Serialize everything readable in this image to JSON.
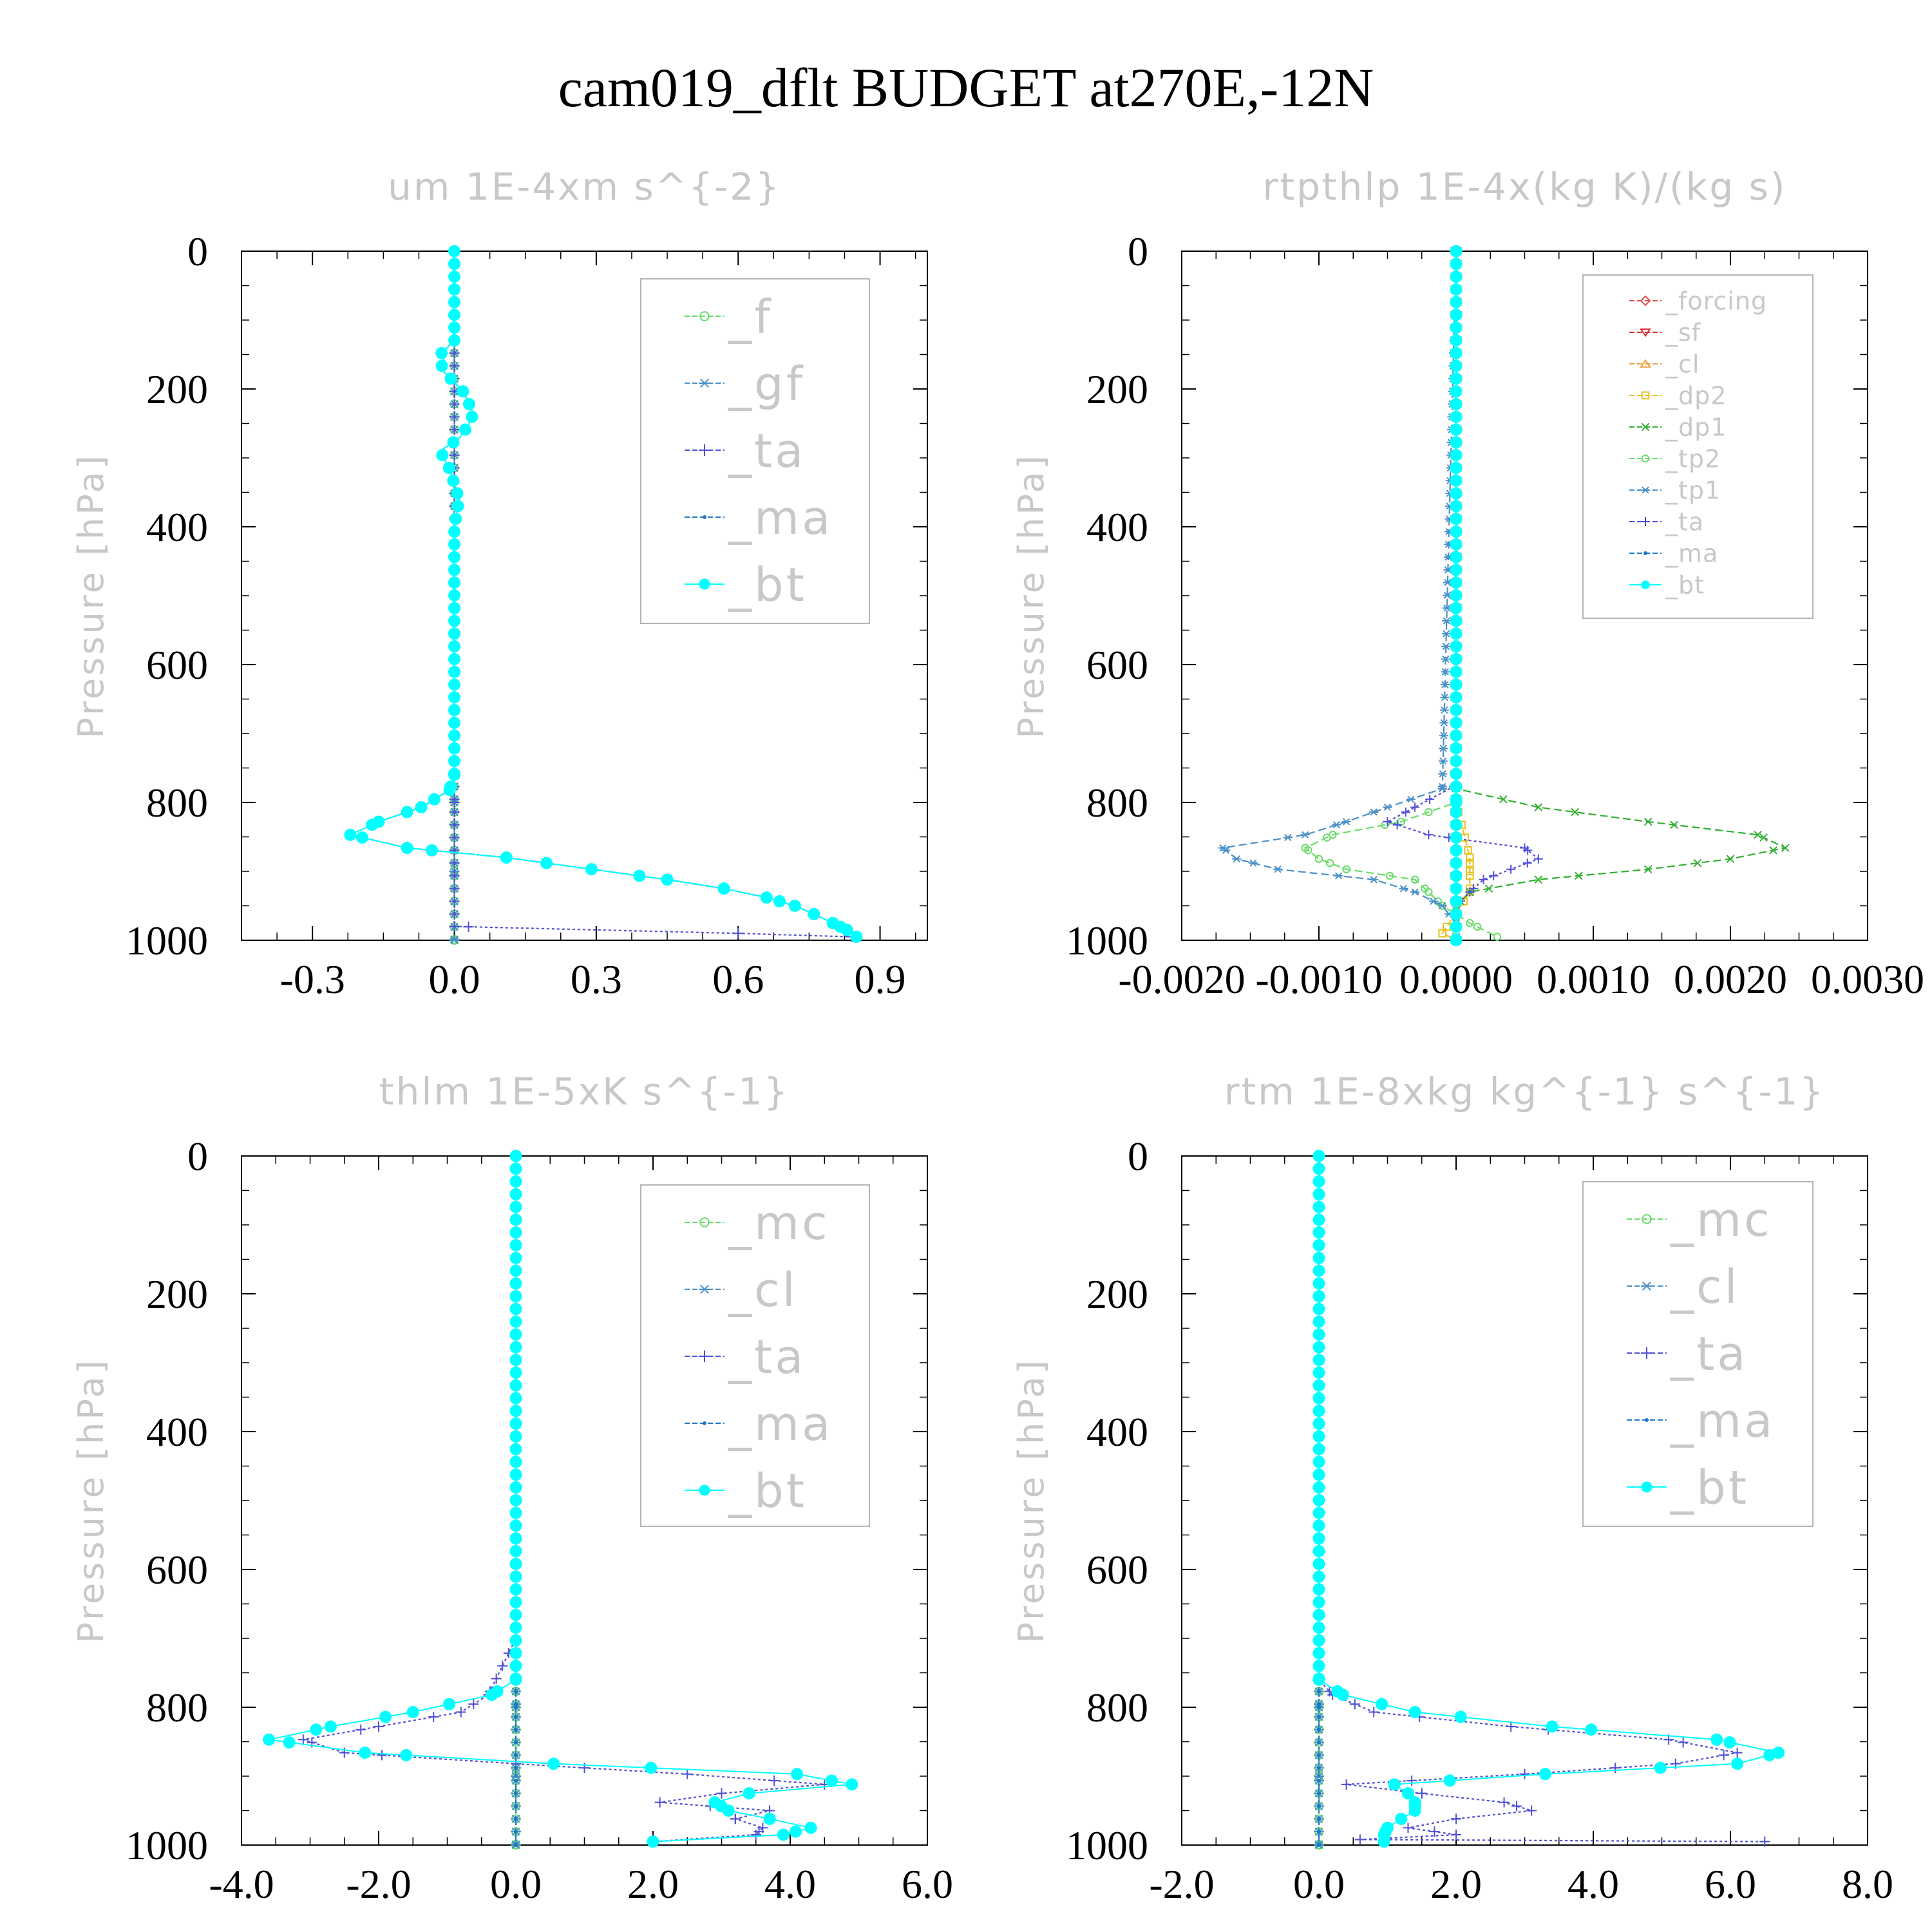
{
  "title": "cam019_dflt  BUDGET at270E,-12N",
  "colors": {
    "axis": "#000000",
    "faint_text": "#c8c8c8",
    "legend_box": "#b4b4b4",
    "bt_marker": "#00ffff"
  },
  "chart_data": [
    {
      "type": "line",
      "title": "um   1E-4xm s^{-2}",
      "ylabel": "Pressure [hPa]",
      "xlim": [
        -0.45,
        1.0
      ],
      "ylim": [
        0,
        1000
      ],
      "y_inverted": true,
      "xticks": [
        -0.3,
        0.0,
        0.3,
        0.6,
        0.9
      ],
      "xtick_labels": [
        "-0.3",
        "0.0",
        "0.3",
        "0.6",
        "0.9"
      ],
      "yticks": [
        0,
        200,
        400,
        600,
        800,
        1000
      ],
      "ytick_labels": [
        "0",
        "200",
        "400",
        "600",
        "800",
        "1000"
      ],
      "legend_position": "top-right",
      "legend_font": 72,
      "series": [
        {
          "name": "_f",
          "color": "#66dd66",
          "marker": "circle",
          "dash": "12,6",
          "y": [
            0,
            100,
            200,
            300,
            400,
            500,
            600,
            700,
            800,
            900,
            1000
          ],
          "x": [
            0,
            0,
            0,
            0,
            0,
            0,
            0,
            0,
            0,
            0,
            0
          ]
        },
        {
          "name": "_gf",
          "color": "#4a90c8",
          "marker": "asterisk",
          "dash": "12,6",
          "y": [
            0,
            100,
            200,
            300,
            400,
            500,
            600,
            700,
            800,
            900,
            1000
          ],
          "x": [
            0,
            0,
            0,
            0,
            0,
            0,
            0,
            0,
            0,
            0,
            0
          ]
        },
        {
          "name": "_ta",
          "color": "#5050d8",
          "marker": "plus",
          "dash": "4,4",
          "y": [
            0,
            800,
            980,
            990,
            995
          ],
          "x": [
            0,
            0,
            0,
            0.6,
            0.84
          ]
        },
        {
          "name": "_ma",
          "color": "#1e78c8",
          "marker": "dot",
          "dash": "14,4,3,4",
          "y": [
            0,
            130,
            150,
            160,
            170,
            190,
            205,
            220,
            236,
            252,
            272,
            290,
            316,
            360,
            400,
            450,
            480,
            520,
            560,
            600,
            630,
            670,
            700,
            730,
            760,
            782,
            807,
            828,
            847,
            866,
            880,
            897,
            912,
            925,
            938,
            950,
            962,
            975,
            985,
            995
          ],
          "x": [
            0,
            0,
            -0.03,
            -0.02,
            -0.03,
            0,
            0.02,
            0.03,
            0.04,
            0.03,
            0.01,
            -0.03,
            -0.01,
            0.01,
            0,
            0,
            0,
            0,
            0,
            0,
            0,
            0,
            0,
            0,
            0,
            -0.01,
            -0.07,
            -0.16,
            -0.22,
            -0.1,
            0.11,
            0.29,
            0.45,
            0.57,
            0.66,
            0.72,
            0.76,
            0.8,
            0.83,
            0.85
          ]
        },
        {
          "name": "_bt",
          "color": "#00ffff",
          "marker": "bigdot",
          "dash": "none",
          "y": [
            0,
            130,
            150,
            160,
            170,
            190,
            205,
            220,
            236,
            252,
            272,
            290,
            316,
            360,
            400,
            450,
            480,
            520,
            560,
            600,
            630,
            670,
            700,
            730,
            760,
            782,
            807,
            828,
            847,
            866,
            880,
            897,
            912,
            925,
            938,
            950,
            962,
            975,
            985,
            995
          ],
          "x": [
            0,
            0,
            -0.03,
            -0.02,
            -0.03,
            0,
            0.02,
            0.03,
            0.04,
            0.03,
            0.01,
            -0.03,
            -0.01,
            0.01,
            0,
            0,
            0,
            0,
            0,
            0,
            0,
            0,
            0,
            0,
            0,
            -0.01,
            -0.07,
            -0.16,
            -0.22,
            -0.1,
            0.11,
            0.29,
            0.45,
            0.57,
            0.66,
            0.72,
            0.76,
            0.8,
            0.83,
            0.85
          ]
        }
      ]
    },
    {
      "type": "line",
      "title": "rtpthlp   1E-4x(kg K)/(kg s)",
      "ylabel": "Pressure [hPa]",
      "xlim": [
        -0.002,
        0.003
      ],
      "ylim": [
        0,
        1000
      ],
      "y_inverted": true,
      "xticks": [
        -0.002,
        -0.001,
        0.0,
        0.001,
        0.002,
        0.003
      ],
      "xtick_labels": [
        "-0.0020",
        "-0.0010",
        "0.0000",
        "0.0010",
        "0.0020",
        "0.0030"
      ],
      "yticks": [
        0,
        200,
        400,
        600,
        800,
        1000
      ],
      "ytick_labels": [
        "0",
        "200",
        "400",
        "600",
        "800",
        "1000"
      ],
      "legend_position": "top-right",
      "legend_font": 38,
      "series": [
        {
          "name": "_forcing",
          "color": "#e05050",
          "marker": "diamond",
          "dash": "10,5",
          "y": [
            0,
            200,
            400,
            600,
            800,
            1000
          ],
          "x": [
            0,
            0,
            0,
            0,
            0,
            0
          ]
        },
        {
          "name": "_sf",
          "color": "#e03030",
          "marker": "tri-down",
          "dash": "10,5",
          "y": [
            0,
            200,
            400,
            600,
            800,
            1000
          ],
          "x": [
            0,
            0,
            0,
            0,
            0,
            0
          ]
        },
        {
          "name": "_cl",
          "color": "#f0a040",
          "marker": "tri-up",
          "dash": "10,5",
          "y": [
            0,
            200,
            400,
            600,
            800,
            1000
          ],
          "x": [
            0,
            0,
            0,
            0,
            0,
            0
          ]
        },
        {
          "name": "_dp2",
          "color": "#e8c020",
          "marker": "square",
          "dash": "10,5",
          "y": [
            0,
            800,
            880,
            900,
            930,
            960,
            990,
            1000
          ],
          "x": [
            0,
            0,
            0.0001,
            0.0001,
            0.0001,
            0,
            -0.0001,
            0
          ]
        },
        {
          "name": "_dp1",
          "color": "#30b030",
          "marker": "cross",
          "dash": "12,6",
          "y": [
            0,
            780,
            807,
            828,
            847,
            866,
            882,
            897,
            912,
            930,
            950,
            975,
            995
          ],
          "x": [
            0,
            0,
            0.0006,
            0.0014,
            0.0022,
            0.0024,
            0.002,
            0.0014,
            0.0006,
            0.0001,
            0,
            0,
            0
          ]
        },
        {
          "name": "_tp2",
          "color": "#66dd66",
          "marker": "circle",
          "dash": "12,6",
          "y": [
            0,
            800,
            828,
            847,
            866,
            882,
            897,
            912,
            930,
            950,
            975,
            995
          ],
          "x": [
            0,
            0,
            -0.0004,
            -0.0009,
            -0.0011,
            -0.001,
            -0.0008,
            -0.0003,
            -0.0002,
            -0.0001,
            0.0001,
            0.0003
          ]
        },
        {
          "name": "_tp1",
          "color": "#4a90c8",
          "marker": "asterisk",
          "dash": "12,6",
          "y": [
            0,
            780,
            807,
            828,
            847,
            866,
            882,
            897,
            912,
            930,
            950,
            975,
            995
          ],
          "x": [
            0,
            -0.0001,
            -0.0005,
            -0.0008,
            -0.0011,
            -0.0017,
            -0.0016,
            -0.0013,
            -0.0006,
            -0.0003,
            -0.0001,
            0,
            0
          ]
        },
        {
          "name": "_ta",
          "color": "#5050d8",
          "marker": "plus",
          "dash": "4,4",
          "y": [
            0,
            775,
            807,
            828,
            847,
            866,
            882,
            897,
            912,
            930,
            950,
            975,
            995
          ],
          "x": [
            0,
            0,
            -0.0003,
            -0.0005,
            -0.0002,
            0.0005,
            0.0006,
            0.0004,
            0.0002,
            0.0001,
            0,
            0,
            0
          ]
        },
        {
          "name": "_ma",
          "color": "#1e78c8",
          "marker": "dot",
          "dash": "14,4,3,4",
          "y": [
            0,
            200,
            400,
            600,
            800,
            1000
          ],
          "x": [
            0,
            0,
            0,
            0,
            0,
            0
          ]
        },
        {
          "name": "_bt",
          "color": "#00ffff",
          "marker": "bigdot",
          "dash": "none",
          "y": [
            0,
            200,
            400,
            600,
            800,
            1000
          ],
          "x": [
            0,
            0,
            0,
            0,
            0,
            0
          ]
        }
      ]
    },
    {
      "type": "line",
      "title": "thlm   1E-5xK s^{-1}",
      "ylabel": "Pressure [hPa]",
      "xlim": [
        -4.0,
        6.0
      ],
      "ylim": [
        0,
        1000
      ],
      "y_inverted": true,
      "xticks": [
        -4.0,
        -2.0,
        0.0,
        2.0,
        4.0,
        6.0
      ],
      "xtick_labels": [
        "-4.0",
        "-2.0",
        "0.0",
        "2.0",
        "4.0",
        "6.0"
      ],
      "yticks": [
        0,
        200,
        400,
        600,
        800,
        1000
      ],
      "ytick_labels": [
        "0",
        "200",
        "400",
        "600",
        "800",
        "1000"
      ],
      "legend_position": "top-right",
      "legend_font": 72,
      "series": [
        {
          "name": "_mc",
          "color": "#66dd66",
          "marker": "circle",
          "dash": "12,6",
          "y": [
            0,
            100,
            200,
            300,
            400,
            500,
            600,
            700,
            800,
            900,
            1000
          ],
          "x": [
            0,
            0,
            0,
            0,
            0,
            0,
            0,
            0,
            0,
            0,
            0
          ]
        },
        {
          "name": "_cl",
          "color": "#4a90c8",
          "marker": "asterisk",
          "dash": "12,6",
          "y": [
            0,
            100,
            200,
            300,
            400,
            500,
            600,
            700,
            800,
            900,
            1000
          ],
          "x": [
            0,
            0,
            0,
            0,
            0,
            0,
            0,
            0,
            0,
            0,
            0
          ]
        },
        {
          "name": "_ta",
          "color": "#5050d8",
          "marker": "plus",
          "dash": "4,4",
          "y": [
            0,
            700,
            782,
            807,
            828,
            847,
            866,
            882,
            897,
            912,
            925,
            938,
            950,
            962,
            975,
            985,
            995
          ],
          "x": [
            0,
            0,
            -0.4,
            -0.8,
            -2.0,
            -3.1,
            -2.5,
            0,
            2.5,
            4.5,
            3.0,
            2.1,
            3.7,
            3.2,
            3.6,
            3.5,
            2.0
          ]
        },
        {
          "name": "_ma",
          "color": "#1e78c8",
          "marker": "dot",
          "dash": "14,4,3,4",
          "y": [
            0,
            200,
            400,
            600,
            800,
            1000
          ],
          "x": [
            0,
            0,
            0,
            0,
            0,
            0
          ]
        },
        {
          "name": "_bt",
          "color": "#00ffff",
          "marker": "bigdot",
          "dash": "none",
          "y": [
            0,
            100,
            200,
            300,
            400,
            500,
            600,
            700,
            760,
            782,
            807,
            828,
            847,
            866,
            882,
            897,
            912,
            925,
            938,
            950,
            962,
            975,
            985,
            995
          ],
          "x": [
            0,
            0,
            0,
            0,
            0,
            0,
            0,
            0,
            0,
            -0.35,
            -1.5,
            -2.7,
            -3.6,
            -2.2,
            0.55,
            4.1,
            4.9,
            3.4,
            2.9,
            3.1,
            3.7,
            4.3,
            3.9,
            2.0
          ]
        }
      ]
    },
    {
      "type": "line",
      "title": "rtm   1E-8xkg kg^{-1} s^{-1}",
      "ylabel": "Pressure [hPa]",
      "xlim": [
        -2.0,
        8.0
      ],
      "ylim": [
        0,
        1000
      ],
      "y_inverted": true,
      "xticks": [
        -2.0,
        0.0,
        2.0,
        4.0,
        6.0,
        8.0
      ],
      "xtick_labels": [
        "-2.0",
        "0.0",
        "2.0",
        "4.0",
        "6.0",
        "8.0"
      ],
      "yticks": [
        0,
        200,
        400,
        600,
        800,
        1000
      ],
      "ytick_labels": [
        "0",
        "200",
        "400",
        "600",
        "800",
        "1000"
      ],
      "legend_position": "top-right",
      "legend_font": 72,
      "series": [
        {
          "name": "_mc",
          "color": "#66dd66",
          "marker": "circle",
          "dash": "12,6",
          "y": [
            0,
            100,
            200,
            300,
            400,
            500,
            600,
            700,
            800,
            900,
            1000
          ],
          "x": [
            0,
            0,
            0,
            0,
            0,
            0,
            0,
            0,
            0,
            0,
            0
          ]
        },
        {
          "name": "_cl",
          "color": "#4a90c8",
          "marker": "asterisk",
          "dash": "12,6",
          "y": [
            0,
            100,
            200,
            300,
            400,
            500,
            600,
            700,
            800,
            900,
            1000
          ],
          "x": [
            0,
            0,
            0,
            0,
            0,
            0,
            0,
            0,
            0,
            0,
            0
          ]
        },
        {
          "name": "_ta",
          "color": "#5050d8",
          "marker": "plus",
          "dash": "4,4",
          "y": [
            0,
            760,
            782,
            807,
            828,
            847,
            866,
            882,
            897,
            912,
            925,
            938,
            950,
            962,
            975,
            985,
            992,
            995
          ],
          "x": [
            0,
            0,
            0.2,
            0.8,
            2.8,
            5.1,
            6.1,
            5.2,
            3.0,
            0.4,
            1.5,
            2.7,
            3.1,
            2.0,
            1.3,
            2.0,
            0.6,
            6.5
          ]
        },
        {
          "name": "_ma",
          "color": "#1e78c8",
          "marker": "dot",
          "dash": "14,4,3,4",
          "y": [
            0,
            200,
            400,
            600,
            800,
            1000
          ],
          "x": [
            0,
            0,
            0,
            0,
            0,
            0
          ]
        },
        {
          "name": "_bt",
          "color": "#00ffff",
          "marker": "bigdot",
          "dash": "none",
          "y": [
            0,
            100,
            200,
            300,
            400,
            500,
            600,
            700,
            760,
            782,
            807,
            828,
            847,
            866,
            882,
            897,
            912,
            925,
            938,
            950,
            962,
            975,
            985,
            995
          ],
          "x": [
            0,
            0,
            0,
            0,
            0,
            0,
            0,
            0,
            0,
            0.35,
            1.4,
            3.4,
            5.8,
            6.7,
            6.1,
            3.3,
            1.1,
            1.3,
            1.4,
            1.4,
            1.2,
            1.0,
            0.95,
            0.95
          ]
        }
      ]
    }
  ]
}
